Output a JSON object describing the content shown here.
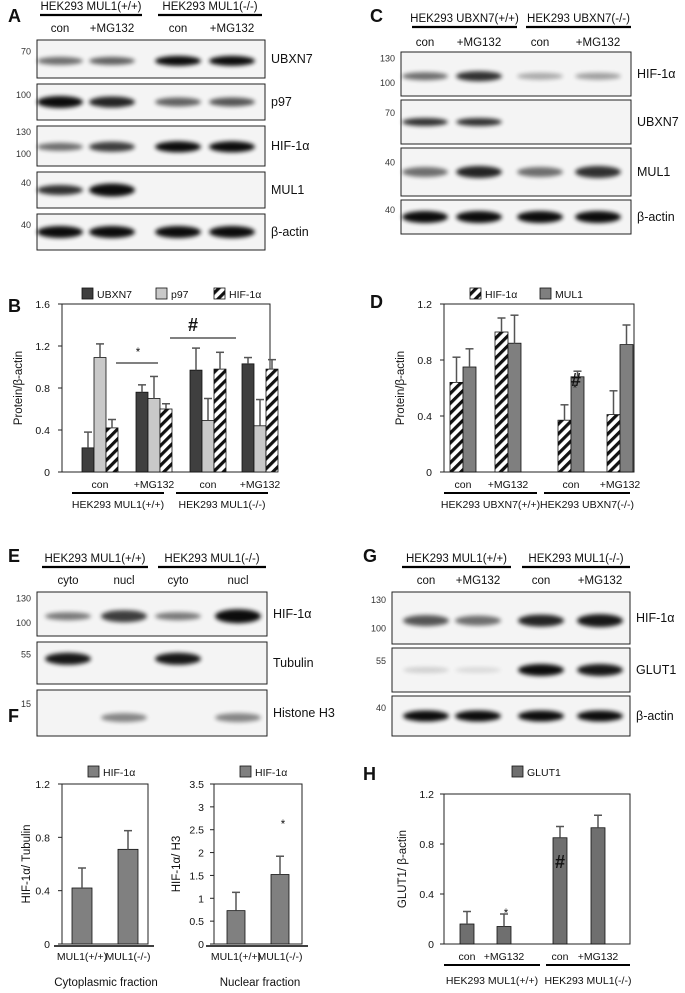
{
  "panels": {
    "A": {
      "label": "A",
      "groups": [
        "HEK293 MUL1(+/+)",
        "HEK293 MUL1(-/-)"
      ],
      "lanes": [
        "con",
        "+MG132",
        "con",
        "+MG132"
      ],
      "blots": [
        {
          "name": "UBXN7",
          "markers": [
            "70"
          ]
        },
        {
          "name": "p97",
          "markers": [
            "100"
          ]
        },
        {
          "name": "HIF-1α",
          "markers": [
            "130",
            "100"
          ]
        },
        {
          "name": "MUL1",
          "markers": [
            "40"
          ]
        },
        {
          "name": "β-actin",
          "markers": [
            "40"
          ]
        }
      ]
    },
    "C": {
      "label": "C",
      "groups": [
        "HEK293 UBXN7(+/+)",
        "HEK293 UBXN7(-/-)"
      ],
      "lanes": [
        "con",
        "+MG132",
        "con",
        "+MG132"
      ],
      "blots": [
        {
          "name": "HIF-1α",
          "markers": [
            "130",
            "100"
          ]
        },
        {
          "name": "UBXN7",
          "markers": [
            "70"
          ]
        },
        {
          "name": "MUL1",
          "markers": [
            "40"
          ]
        },
        {
          "name": "β-actin",
          "markers": [
            "40"
          ]
        }
      ]
    },
    "E": {
      "label": "E",
      "groups": [
        "HEK293 MUL1(+/+)",
        "HEK293 MUL1(-/-)"
      ],
      "lanes": [
        "cyto",
        "nucl",
        "cyto",
        "nucl"
      ],
      "blots": [
        {
          "name": "HIF-1α",
          "markers": [
            "130",
            "100"
          ]
        },
        {
          "name": "Tubulin",
          "markers": [
            "55"
          ]
        },
        {
          "name": "Histone H3",
          "markers": [
            "15"
          ]
        }
      ]
    },
    "G": {
      "label": "G",
      "groups": [
        "HEK293 MUL1(+/+)",
        "HEK293 MUL1(-/-)"
      ],
      "lanes": [
        "con",
        "+MG132",
        "con",
        "+MG132"
      ],
      "blots": [
        {
          "name": "HIF-1α",
          "markers": [
            "130",
            "100"
          ]
        },
        {
          "name": "GLUT1",
          "markers": [
            "55"
          ]
        },
        {
          "name": "β-actin",
          "markers": [
            "40"
          ]
        }
      ]
    }
  },
  "chart_data": [
    {
      "id": "B",
      "label": "B",
      "type": "bar",
      "ylabel": "Protein/β-actin",
      "ylim": [
        0,
        1.6
      ],
      "yticks": [
        "0",
        "0.4",
        "0.8",
        "1.2",
        "1.6"
      ],
      "categories": [
        "con",
        "+MG132",
        "con",
        "+MG132"
      ],
      "groups": [
        "HEK293 MUL1(+/+)",
        "HEK293 MUL1(-/-)"
      ],
      "series": [
        {
          "name": "UBXN7",
          "values": [
            0.23,
            0.76,
            0.97,
            1.03
          ],
          "errors": [
            0.15,
            0.07,
            0.21,
            0.06
          ],
          "color": "#3f3f3f",
          "pattern": "solid"
        },
        {
          "name": "p97",
          "values": [
            1.09,
            0.7,
            0.49,
            0.44
          ],
          "errors": [
            0.13,
            0.21,
            0.21,
            0.25
          ],
          "color": "#c9c9c9",
          "pattern": "solid"
        },
        {
          "name": "HIF-1α",
          "values": [
            0.42,
            0.6,
            0.98,
            0.98
          ],
          "errors": [
            0.08,
            0.05,
            0.16,
            0.09
          ],
          "color": "#ffffff",
          "pattern": "hatch"
        }
      ],
      "annotations": [
        "*",
        "#"
      ],
      "legend": "top"
    },
    {
      "id": "D",
      "label": "D",
      "type": "bar",
      "ylabel": "Protein/β-actin",
      "ylim": [
        0,
        1.2
      ],
      "yticks": [
        "0",
        "0.4",
        "0.8",
        "1.2"
      ],
      "categories": [
        "con",
        "+MG132",
        "con",
        "+MG132"
      ],
      "groups": [
        "HEK293 UBXN7(+/+)",
        "HEK293 UBXN7(-/-)"
      ],
      "series": [
        {
          "name": "HIF-1α",
          "values": [
            0.64,
            1.0,
            0.37,
            0.41
          ],
          "errors": [
            0.18,
            0.1,
            0.11,
            0.17
          ],
          "color": "#ffffff",
          "pattern": "hatch"
        },
        {
          "name": "MUL1",
          "values": [
            0.75,
            0.92,
            0.68,
            0.91
          ],
          "errors": [
            0.13,
            0.2,
            0.04,
            0.14
          ],
          "color": "#7f7f7f",
          "pattern": "solid"
        }
      ],
      "annotations": [
        "*",
        "#"
      ],
      "legend": "top"
    },
    {
      "id": "F1",
      "label": "F",
      "type": "bar",
      "ylabel": "HIF-1α/ Tubulin",
      "ylim": [
        0,
        1.2
      ],
      "yticks": [
        "0",
        "0.4",
        "0.8",
        "1.2"
      ],
      "categories": [
        "MUL1(+/+)",
        "MUL1(-/-)"
      ],
      "xlabel": "Cytoplasmic  fraction",
      "series": [
        {
          "name": "HIF-1α",
          "values": [
            0.42,
            0.71
          ],
          "errors": [
            0.15,
            0.14
          ],
          "color": "#808080",
          "pattern": "solid"
        }
      ],
      "legend": "top"
    },
    {
      "id": "F2",
      "label": "",
      "type": "bar",
      "ylabel": "HIF-1α/ H3",
      "ylim": [
        0,
        3.5
      ],
      "yticks": [
        "0",
        "0.5",
        "1",
        "1.5",
        "2",
        "2.5",
        "3",
        "3.5"
      ],
      "categories": [
        "MUL1(+/+)",
        "MUL1(-/-)"
      ],
      "xlabel": "Nuclear fraction",
      "series": [
        {
          "name": "HIF-1α",
          "values": [
            0.73,
            1.52
          ],
          "errors": [
            0.4,
            0.4
          ],
          "color": "#808080",
          "pattern": "solid"
        }
      ],
      "annotations": [
        "*"
      ],
      "legend": "top"
    },
    {
      "id": "H",
      "label": "H",
      "type": "bar",
      "ylabel": "GLUT1/ β-actin",
      "ylim": [
        0,
        1.2
      ],
      "yticks": [
        "0",
        "0.4",
        "0.8",
        "1.2"
      ],
      "categories": [
        "con",
        "+MG132",
        "con",
        "+MG132"
      ],
      "groups": [
        "HEK293 MUL1(+/+)",
        "HEK293 MUL1(-/-)"
      ],
      "series": [
        {
          "name": "GLUT1",
          "values": [
            0.16,
            0.14,
            0.85,
            0.93
          ],
          "errors": [
            0.1,
            0.1,
            0.09,
            0.1
          ],
          "color": "#6f6f6f",
          "pattern": "solid"
        }
      ],
      "annotations": [
        "*",
        "#"
      ],
      "legend": "top"
    }
  ]
}
